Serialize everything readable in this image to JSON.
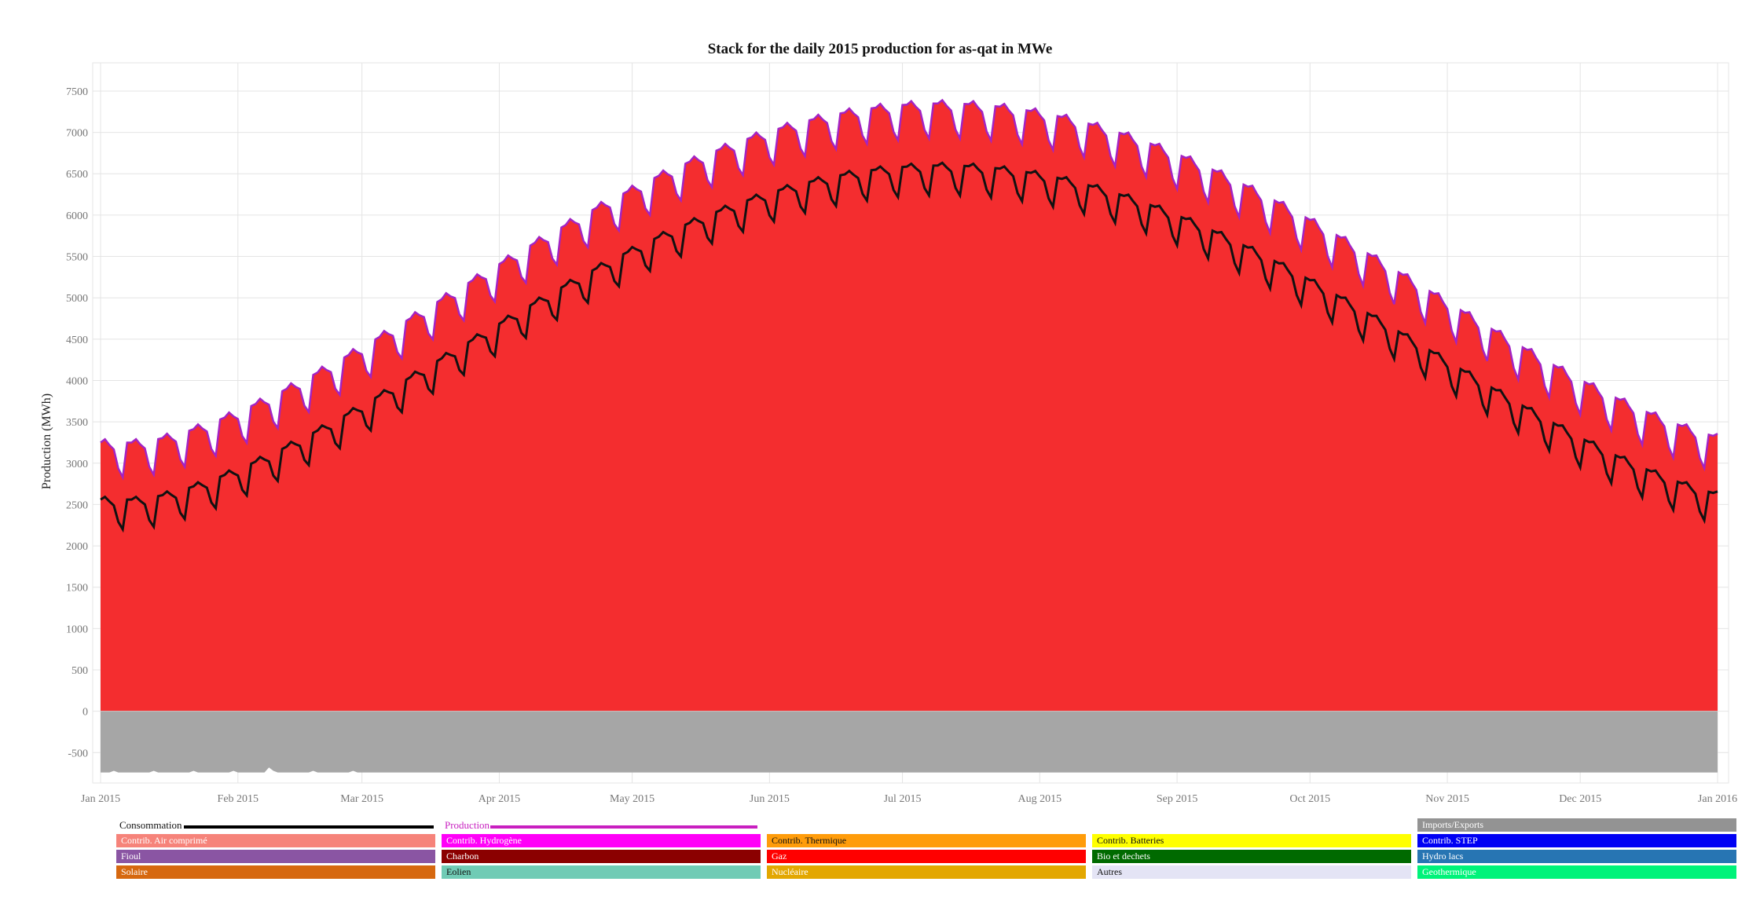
{
  "chart_data": {
    "type": "area",
    "title": "Stack for the daily 2015 production for as-qat in MWe",
    "ylabel": "Production (MWh)",
    "xlabel": "",
    "ylim": [
      -750,
      7500
    ],
    "grid": true,
    "y_ticks": [
      -500,
      0,
      500,
      1000,
      1500,
      2000,
      2500,
      3000,
      3500,
      4000,
      4500,
      5000,
      5500,
      6000,
      6500,
      7000,
      7500
    ],
    "x_tick_labels": [
      "Jan 2015",
      "Feb 2015",
      "Mar 2015",
      "Apr 2015",
      "May 2015",
      "Jun 2015",
      "Jul 2015",
      "Aug 2015",
      "Sep 2015",
      "Oct 2015",
      "Nov 2015",
      "Dec 2015",
      "Jan 2016"
    ],
    "x_tick_days": [
      0,
      31,
      59,
      90,
      120,
      151,
      181,
      212,
      243,
      273,
      304,
      334,
      365
    ],
    "days_count": 365,
    "model": {
      "production_base": 3250,
      "production_amplitude": 4100,
      "consumption_base": 2560,
      "consumption_amplitude": 4040,
      "peak_day": 190,
      "weekly_dip_production": 420,
      "weekly_dip_consumption": 360,
      "imports_level": -740
    },
    "series": [
      {
        "name": "Gaz",
        "color": "#f42d2f",
        "kind": "stack-positive"
      },
      {
        "name": "Imports/Exports",
        "color": "#a6a6a6",
        "kind": "stack-negative"
      },
      {
        "name": "Production",
        "color": "#a323c4",
        "kind": "line"
      },
      {
        "name": "Consommation",
        "color": "#111111",
        "kind": "line"
      }
    ]
  },
  "legend": {
    "line_entries": [
      {
        "label": "Consommation",
        "color": "#000000"
      },
      {
        "label": "Production",
        "color": "#c81fc0"
      }
    ],
    "boxes": [
      {
        "label": "Imports/Exports",
        "color": "#939393",
        "text_color": "#ffffff"
      },
      {
        "label": "Contrib. Air comprimé",
        "color": "#f6837a",
        "text_color": "#ffffff"
      },
      {
        "label": "Contrib. Hydrogène",
        "color": "#ff00f8",
        "text_color": "#ffffff"
      },
      {
        "label": "Contrib. Thermique",
        "color": "#ff9c0a",
        "text_color": "#111111"
      },
      {
        "label": "Contrib. Batteries",
        "color": "#ffff00",
        "text_color": "#111111"
      },
      {
        "label": "Contrib. STEP",
        "color": "#0000f4",
        "text_color": "#ffffff"
      },
      {
        "label": "Fioul",
        "color": "#8a55a3",
        "text_color": "#ffffff"
      },
      {
        "label": "Charbon",
        "color": "#8b0000",
        "text_color": "#ffffff"
      },
      {
        "label": "Gaz",
        "color": "#ff0000",
        "text_color": "#ffffff"
      },
      {
        "label": "Bio et dechets",
        "color": "#006a00",
        "text_color": "#ffffff"
      },
      {
        "label": "Hydro lacs",
        "color": "#2775b3",
        "text_color": "#ffffff"
      },
      {
        "label": "Solaire",
        "color": "#d6680f",
        "text_color": "#ffffff"
      },
      {
        "label": "Eolien",
        "color": "#70cbb5",
        "text_color": "#111111"
      },
      {
        "label": "Nucléaire",
        "color": "#e3a700",
        "text_color": "#ffffff"
      },
      {
        "label": "Autres",
        "color": "#e4e4f5",
        "text_color": "#111111"
      },
      {
        "label": "Geothermique",
        "color": "#00f37a",
        "text_color": "#ffffff"
      }
    ]
  }
}
